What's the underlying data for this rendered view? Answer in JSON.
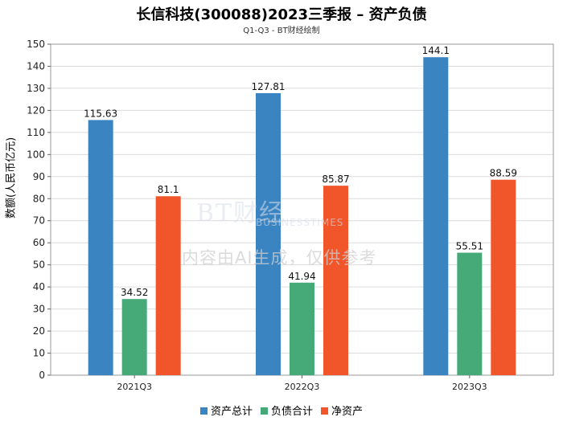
{
  "chart_data": {
    "type": "bar",
    "title": "长信科技(300088)2023三季报 – 资产负债",
    "subtitle": "Q1-Q3 - BT财经绘制",
    "ylabel": "数额(人民币亿元)",
    "xlabel": "",
    "categories": [
      "2021Q3",
      "2022Q3",
      "2023Q3"
    ],
    "series": [
      {
        "name": "资产总计",
        "color": "#3a84c2",
        "values": [
          115.63,
          127.81,
          144.1
        ]
      },
      {
        "name": "负债合计",
        "color": "#46a978",
        "values": [
          34.52,
          41.94,
          55.51
        ]
      },
      {
        "name": "净资产",
        "color": "#f0562a",
        "values": [
          81.1,
          85.87,
          88.59
        ]
      }
    ],
    "ylim": [
      0,
      150
    ],
    "ytick_step": 10,
    "grid": true,
    "legend_position": "bottom-center"
  },
  "watermark": {
    "logo": "BT财经",
    "logo_sub": "BUSINESSTIMES",
    "text": "内容由AI生成，仅供参考"
  }
}
